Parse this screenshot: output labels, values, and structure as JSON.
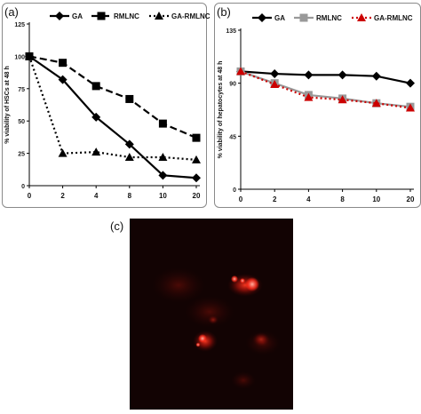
{
  "panels": {
    "a_label": "(a)",
    "b_label": "(b)",
    "c_label": "(c)"
  },
  "chart_data": [
    {
      "type": "line",
      "panel": "(a)",
      "title": "",
      "xlabel": "",
      "ylabel": "% viability of HSCs at 48 h",
      "categories": [
        "0",
        "2",
        "4",
        "8",
        "10",
        "20"
      ],
      "ylim": [
        0,
        125
      ],
      "yticks": [
        0,
        25,
        50,
        75,
        100,
        125
      ],
      "grid": false,
      "legend_position": "top",
      "series": [
        {
          "name": "GA",
          "values": [
            100,
            82,
            53,
            32,
            8,
            6
          ],
          "color": "#000000",
          "dash": "solid",
          "marker": "diamond"
        },
        {
          "name": "RMLNC",
          "values": [
            100,
            95,
            77,
            67,
            48,
            37
          ],
          "color": "#000000",
          "dash": "dashed",
          "marker": "square"
        },
        {
          "name": "GA-RMLNC",
          "values": [
            100,
            25,
            26,
            22,
            22,
            20
          ],
          "color": "#000000",
          "dash": "dotted",
          "marker": "triangle"
        }
      ]
    },
    {
      "type": "line",
      "panel": "(b)",
      "title": "",
      "xlabel": "",
      "ylabel": "% viability of hepatocytes at 48 h",
      "categories": [
        "0",
        "2",
        "4",
        "8",
        "10",
        "20"
      ],
      "ylim": [
        0,
        135
      ],
      "yticks": [
        0,
        45,
        90,
        135
      ],
      "grid": false,
      "legend_position": "top",
      "series": [
        {
          "name": "GA",
          "values": [
            100,
            98,
            97,
            97,
            96,
            90
          ],
          "color": "#000000",
          "dash": "solid",
          "marker": "diamond"
        },
        {
          "name": "RMLNC",
          "values": [
            100,
            90,
            80,
            77,
            73,
            70
          ],
          "color": "#999999",
          "dash": "solid",
          "marker": "square"
        },
        {
          "name": "GA-RMLNC",
          "values": [
            100,
            89,
            78,
            76,
            73,
            69
          ],
          "color": "#cc0000",
          "dash": "dotted",
          "marker": "triangle"
        }
      ]
    }
  ],
  "image_c": {
    "background": "#120303",
    "signal_color": "#ff2a1a"
  }
}
